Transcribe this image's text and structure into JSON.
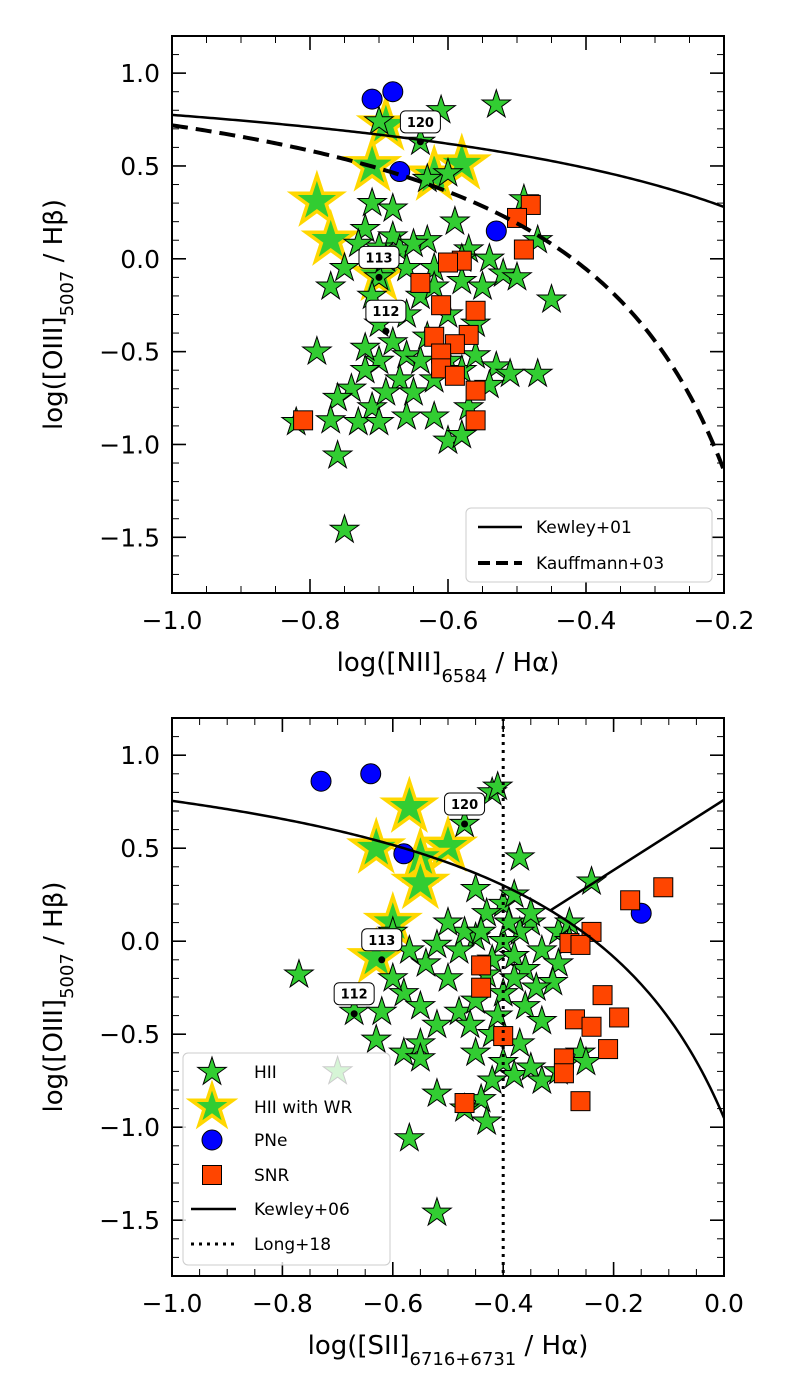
{
  "colors": {
    "hii_fill": "#32cd32",
    "wr_edge": "#ffd700",
    "pne_fill": "#0000ff",
    "snr_fill": "#ff4500",
    "edge": "#000000"
  },
  "chart_data": [
    {
      "type": "scatter",
      "panel": "top",
      "xlabel_main": "log([NII]",
      "xlabel_sub": "6584",
      "xlabel_tail": " / Hα)",
      "ylabel_main": "log([OIII]",
      "ylabel_sub": "5007",
      "ylabel_tail": " / Hβ)",
      "xlim": [
        -1.0,
        -0.2
      ],
      "ylim": [
        -1.8,
        1.2
      ],
      "xticks": [
        -1.0,
        -0.8,
        -0.6,
        -0.4,
        -0.2
      ],
      "xtick_labels": [
        "−1.0",
        "−0.8",
        "−0.6",
        "−0.4",
        "−0.2"
      ],
      "yticks": [
        1.0,
        0.5,
        0.0,
        -0.5,
        -1.0,
        -1.5
      ],
      "ytick_labels": [
        "1.0",
        "0.5",
        "0.0",
        "−0.5",
        "−1.0",
        "−1.5"
      ],
      "series": [
        {
          "name": "HII",
          "marker": "star",
          "points": [
            [
              -0.61,
              0.8
            ],
            [
              -0.53,
              0.83
            ],
            [
              -0.64,
              0.63
            ],
            [
              -0.7,
              0.74
            ],
            [
              -0.63,
              0.43
            ],
            [
              -0.6,
              0.46
            ],
            [
              -0.71,
              0.3
            ],
            [
              -0.68,
              0.27
            ],
            [
              -0.72,
              0.16
            ],
            [
              -0.68,
              0.12
            ],
            [
              -0.67,
              0.05
            ],
            [
              -0.7,
              0.06
            ],
            [
              -0.73,
              0.08
            ],
            [
              -0.75,
              -0.05
            ],
            [
              -0.77,
              -0.15
            ],
            [
              -0.7,
              -0.1
            ],
            [
              -0.66,
              -0.05
            ],
            [
              -0.63,
              0.1
            ],
            [
              -0.59,
              0.2
            ],
            [
              -0.57,
              0.05
            ],
            [
              -0.54,
              0.0
            ],
            [
              -0.52,
              -0.08
            ],
            [
              -0.55,
              -0.15
            ],
            [
              -0.58,
              -0.12
            ],
            [
              -0.62,
              -0.05
            ],
            [
              -0.64,
              -0.2
            ],
            [
              -0.66,
              -0.3
            ],
            [
              -0.7,
              -0.35
            ],
            [
              -0.68,
              -0.45
            ],
            [
              -0.66,
              -0.52
            ],
            [
              -0.64,
              -0.55
            ],
            [
              -0.7,
              -0.55
            ],
            [
              -0.72,
              -0.6
            ],
            [
              -0.74,
              -0.7
            ],
            [
              -0.76,
              -0.75
            ],
            [
              -0.71,
              -0.8
            ],
            [
              -0.67,
              -0.65
            ],
            [
              -0.65,
              -0.72
            ],
            [
              -0.62,
              -0.65
            ],
            [
              -0.6,
              -0.55
            ],
            [
              -0.58,
              -0.6
            ],
            [
              -0.56,
              -0.52
            ],
            [
              -0.53,
              -0.58
            ],
            [
              -0.51,
              -0.62
            ],
            [
              -0.54,
              -0.68
            ],
            [
              -0.57,
              -0.8
            ],
            [
              -0.62,
              -0.85
            ],
            [
              -0.66,
              -0.85
            ],
            [
              -0.69,
              -0.72
            ],
            [
              -0.73,
              -0.88
            ],
            [
              -0.7,
              -0.88
            ],
            [
              -0.6,
              -0.98
            ],
            [
              -0.58,
              -0.95
            ],
            [
              -0.77,
              -0.87
            ],
            [
              -0.76,
              -1.06
            ],
            [
              -0.75,
              -1.46
            ],
            [
              -0.79,
              -0.5
            ],
            [
              -0.82,
              -0.88
            ],
            [
              -0.5,
              -0.1
            ],
            [
              -0.47,
              0.1
            ],
            [
              -0.49,
              0.32
            ],
            [
              -0.45,
              -0.22
            ],
            [
              -0.47,
              -0.62
            ],
            [
              -0.6,
              -0.3
            ],
            [
              -0.56,
              -0.35
            ],
            [
              -0.63,
              -0.42
            ],
            [
              -0.72,
              -0.48
            ],
            [
              -0.71,
              -0.2
            ],
            [
              -0.69,
              0.0
            ],
            [
              -0.65,
              0.08
            ],
            [
              -0.62,
              -0.15
            ],
            [
              -0.58,
              0.0
            ]
          ]
        },
        {
          "name": "HII with WR",
          "marker": "big-star",
          "points": [
            [
              -0.69,
              0.72
            ],
            [
              -0.71,
              0.5
            ],
            [
              -0.62,
              0.45
            ],
            [
              -0.58,
              0.51
            ],
            [
              -0.79,
              0.31
            ],
            [
              -0.77,
              0.1
            ],
            [
              -0.7,
              -0.09
            ]
          ]
        },
        {
          "name": "PNe",
          "marker": "circle",
          "points": [
            [
              -0.71,
              0.86
            ],
            [
              -0.68,
              0.9
            ],
            [
              -0.67,
              0.47
            ],
            [
              -0.53,
              0.15
            ]
          ]
        },
        {
          "name": "SNR",
          "marker": "square",
          "points": [
            [
              -0.48,
              0.29
            ],
            [
              -0.5,
              0.22
            ],
            [
              -0.49,
              0.05
            ],
            [
              -0.58,
              -0.01
            ],
            [
              -0.6,
              -0.02
            ],
            [
              -0.64,
              -0.13
            ],
            [
              -0.61,
              -0.25
            ],
            [
              -0.56,
              -0.28
            ],
            [
              -0.62,
              -0.42
            ],
            [
              -0.57,
              -0.41
            ],
            [
              -0.59,
              -0.46
            ],
            [
              -0.61,
              -0.51
            ],
            [
              -0.61,
              -0.59
            ],
            [
              -0.59,
              -0.63
            ],
            [
              -0.56,
              -0.71
            ],
            [
              -0.56,
              -0.87
            ],
            [
              -0.81,
              -0.87
            ]
          ]
        }
      ],
      "lines": [
        {
          "name": "Kewley+01",
          "style": "solid",
          "formula": "0.61/(x-0.47)+1.19"
        },
        {
          "name": "Kauffmann+03",
          "style": "dashed",
          "formula": "0.61/(x-0.05)+1.30"
        }
      ],
      "annotations": [
        {
          "label": "120",
          "x": -0.64,
          "y": 0.63
        },
        {
          "label": "113",
          "x": -0.7,
          "y": -0.1
        },
        {
          "label": "112",
          "x": -0.69,
          "y": -0.39
        }
      ],
      "legend": {
        "placement": "lower-right",
        "entries": [
          "Kewley+01",
          "Kauffmann+03"
        ]
      }
    },
    {
      "type": "scatter",
      "panel": "bottom",
      "xlabel_main": "log([SII]",
      "xlabel_sub": "6716+6731",
      "xlabel_tail": " / Hα)",
      "ylabel_main": "log([OIII]",
      "ylabel_sub": "5007",
      "ylabel_tail": " / Hβ)",
      "xlim": [
        -1.0,
        0.0
      ],
      "ylim": [
        -1.8,
        1.2
      ],
      "xticks": [
        -1.0,
        -0.8,
        -0.6,
        -0.4,
        -0.2,
        0.0
      ],
      "xtick_labels": [
        "−1.0",
        "−0.8",
        "−0.6",
        "−0.4",
        "−0.2",
        "0.0"
      ],
      "yticks": [
        1.0,
        0.5,
        0.0,
        -0.5,
        -1.0,
        -1.5
      ],
      "ytick_labels": [
        "1.0",
        "0.5",
        "0.0",
        "−0.5",
        "−1.0",
        "−1.5"
      ],
      "series": [
        {
          "name": "HII",
          "marker": "star",
          "points": [
            [
              -0.42,
              0.8
            ],
            [
              -0.41,
              0.83
            ],
            [
              -0.47,
              0.63
            ],
            [
              -0.37,
              0.45
            ],
            [
              -0.24,
              0.32
            ],
            [
              -0.45,
              0.28
            ],
            [
              -0.4,
              0.2
            ],
            [
              -0.43,
              0.15
            ],
            [
              -0.38,
              0.25
            ],
            [
              -0.35,
              0.1
            ],
            [
              -0.37,
              0.05
            ],
            [
              -0.4,
              0.0
            ],
            [
              -0.45,
              0.02
            ],
            [
              -0.48,
              -0.05
            ],
            [
              -0.42,
              -0.1
            ],
            [
              -0.38,
              -0.08
            ],
            [
              -0.33,
              -0.05
            ],
            [
              -0.3,
              0.05
            ],
            [
              -0.28,
              0.1
            ],
            [
              -0.3,
              -0.12
            ],
            [
              -0.36,
              -0.15
            ],
            [
              -0.43,
              -0.18
            ],
            [
              -0.5,
              -0.2
            ],
            [
              -0.54,
              -0.12
            ],
            [
              -0.57,
              -0.05
            ],
            [
              -0.6,
              0.05
            ],
            [
              -0.58,
              -0.28
            ],
            [
              -0.62,
              -0.38
            ],
            [
              -0.63,
              -0.53
            ],
            [
              -0.58,
              -0.6
            ],
            [
              -0.55,
              -0.55
            ],
            [
              -0.52,
              -0.45
            ],
            [
              -0.48,
              -0.38
            ],
            [
              -0.45,
              -0.32
            ],
            [
              -0.4,
              -0.28
            ],
            [
              -0.36,
              -0.35
            ],
            [
              -0.33,
              -0.43
            ],
            [
              -0.37,
              -0.55
            ],
            [
              -0.42,
              -0.5
            ],
            [
              -0.45,
              -0.6
            ],
            [
              -0.4,
              -0.65
            ],
            [
              -0.38,
              -0.72
            ],
            [
              -0.35,
              -0.68
            ],
            [
              -0.33,
              -0.75
            ],
            [
              -0.3,
              -0.7
            ],
            [
              -0.42,
              -0.75
            ],
            [
              -0.44,
              -0.85
            ],
            [
              -0.47,
              -0.9
            ],
            [
              -0.43,
              -0.97
            ],
            [
              -0.52,
              -0.82
            ],
            [
              -0.55,
              -0.63
            ],
            [
              -0.57,
              -1.06
            ],
            [
              -0.52,
              -1.46
            ],
            [
              -0.77,
              -0.18
            ],
            [
              -0.7,
              -0.7
            ],
            [
              -0.67,
              -0.38
            ],
            [
              -0.26,
              -0.6
            ],
            [
              -0.25,
              -0.65
            ],
            [
              -0.28,
              0.0
            ],
            [
              -0.31,
              -0.22
            ],
            [
              -0.35,
              0.15
            ],
            [
              -0.47,
              0.05
            ],
            [
              -0.52,
              -0.02
            ],
            [
              -0.5,
              0.1
            ],
            [
              -0.55,
              -0.35
            ],
            [
              -0.46,
              -0.45
            ],
            [
              -0.41,
              -0.4
            ],
            [
              -0.38,
              -0.2
            ],
            [
              -0.34,
              -0.25
            ],
            [
              -0.44,
              0.05
            ],
            [
              -0.39,
              0.1
            ],
            [
              -0.6,
              -0.2
            ]
          ]
        },
        {
          "name": "HII with WR",
          "marker": "big-star",
          "points": [
            [
              -0.57,
              0.72
            ],
            [
              -0.63,
              0.5
            ],
            [
              -0.5,
              0.51
            ],
            [
              -0.55,
              0.45
            ],
            [
              -0.55,
              0.31
            ],
            [
              -0.6,
              0.1
            ],
            [
              -0.63,
              -0.09
            ]
          ]
        },
        {
          "name": "PNe",
          "marker": "circle",
          "points": [
            [
              -0.73,
              0.86
            ],
            [
              -0.64,
              0.9
            ],
            [
              -0.58,
              0.47
            ],
            [
              -0.15,
              0.15
            ]
          ]
        },
        {
          "name": "SNR",
          "marker": "square",
          "points": [
            [
              -0.11,
              0.29
            ],
            [
              -0.17,
              0.22
            ],
            [
              -0.24,
              0.05
            ],
            [
              -0.28,
              -0.01
            ],
            [
              -0.26,
              -0.02
            ],
            [
              -0.44,
              -0.13
            ],
            [
              -0.44,
              -0.25
            ],
            [
              -0.22,
              -0.29
            ],
            [
              -0.27,
              -0.42
            ],
            [
              -0.19,
              -0.41
            ],
            [
              -0.24,
              -0.46
            ],
            [
              -0.4,
              -0.51
            ],
            [
              -0.21,
              -0.58
            ],
            [
              -0.29,
              -0.63
            ],
            [
              -0.29,
              -0.71
            ],
            [
              -0.26,
              -0.86
            ],
            [
              -0.47,
              -0.87
            ]
          ]
        }
      ],
      "lines": [
        {
          "name": "Kewley+06",
          "style": "solid",
          "formula": "0.72/(x-0.32)+1.30 and 1.89x+0.76"
        },
        {
          "name": "Long+18",
          "style": "dotted",
          "formula": "x = -0.4"
        }
      ],
      "annotations": [
        {
          "label": "120",
          "x": -0.47,
          "y": 0.63
        },
        {
          "label": "113",
          "x": -0.62,
          "y": -0.1
        },
        {
          "label": "112",
          "x": -0.67,
          "y": -0.39
        }
      ],
      "legend": {
        "placement": "lower-left",
        "entries": [
          "HII",
          "HII with WR",
          "PNe",
          "SNR",
          "Kewley+06",
          "Long+18"
        ]
      }
    }
  ]
}
